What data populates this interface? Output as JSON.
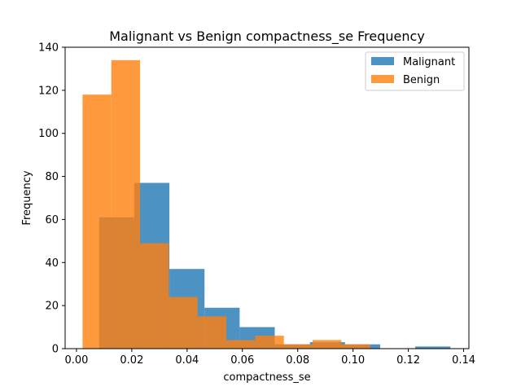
{
  "chart_data": {
    "type": "bar",
    "title": "Malignant vs Benign compactness_se Frequency",
    "xlabel": "compactness_se",
    "ylabel": "Frequency",
    "xlim": [
      -0.0041,
      0.1419
    ],
    "ylim": [
      0,
      140
    ],
    "x_ticks": [
      0.0,
      0.02,
      0.04,
      0.06,
      0.08,
      0.1,
      0.12,
      0.14
    ],
    "x_tick_labels": [
      "0.00",
      "0.02",
      "0.04",
      "0.06",
      "0.08",
      "0.10",
      "0.12",
      "0.14"
    ],
    "y_ticks": [
      0,
      20,
      40,
      60,
      80,
      100,
      120,
      140
    ],
    "y_tick_labels": [
      "0",
      "20",
      "40",
      "60",
      "80",
      "100",
      "120",
      "140"
    ],
    "grid": false,
    "legend_position": "top-right",
    "series": [
      {
        "name": "Malignant",
        "color": "#1f77b4",
        "opacity": 0.8,
        "bin_edges": [
          0.0082,
          0.0209,
          0.0336,
          0.0463,
          0.059,
          0.0717,
          0.0844,
          0.0971,
          0.1098,
          0.1225,
          0.1352
        ],
        "counts": [
          61,
          77,
          37,
          19,
          10,
          2,
          3,
          2,
          0,
          1
        ]
      },
      {
        "name": "Benign",
        "color": "#ff7f0e",
        "opacity": 0.8,
        "bin_edges": [
          0.0022,
          0.0126,
          0.023,
          0.0334,
          0.0438,
          0.0542,
          0.0646,
          0.075,
          0.0854,
          0.0958,
          0.1062
        ],
        "counts": [
          118,
          134,
          49,
          24,
          15,
          4,
          6,
          2,
          4,
          2
        ]
      }
    ]
  }
}
